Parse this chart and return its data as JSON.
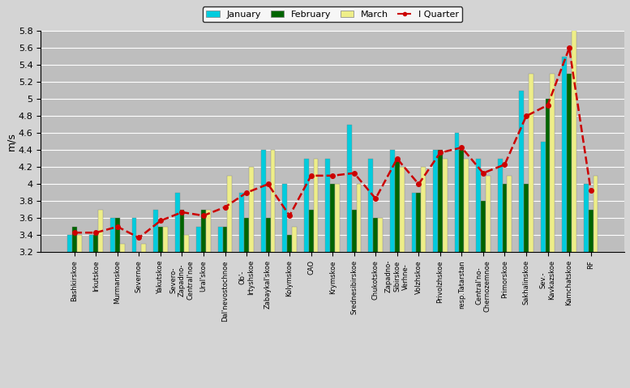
{
  "categories": [
    "Bashkirskoe",
    "Irkutskoe",
    "Murmanskoe",
    "Severnoe",
    "Yakutskoe",
    "Severo-\nZapadno-\nCentral'noe",
    "Ural'skoe",
    "Dal'nevostochnoe",
    "Ob'-\nIrtyshskoe",
    "Zabaykal'skoe",
    "Kolymskoe",
    "CAO",
    "Krymskoe",
    "Srednesibirskoe",
    "Chukotskoe",
    "Zapadno-\nSibirskoe\nVerhne-",
    "Volzhskoe",
    "Privolzhskoe",
    "resp.Tatarstan",
    "Central'no-\nChernozemnoe",
    "Primorskoe",
    "Sakhalinskoe",
    "Sev.-\nKavkazskoe",
    "Kamchatskoe",
    "RF"
  ],
  "january": [
    3.4,
    3.4,
    3.6,
    3.6,
    3.7,
    3.9,
    3.5,
    3.5,
    3.9,
    4.4,
    4.0,
    4.3,
    4.3,
    4.7,
    4.3,
    4.4,
    3.9,
    4.4,
    4.6,
    4.3,
    4.3,
    5.1,
    4.5,
    5.5,
    4.0
  ],
  "february": [
    3.5,
    3.4,
    3.6,
    3.2,
    3.5,
    3.7,
    3.7,
    3.5,
    3.6,
    3.6,
    3.4,
    3.7,
    4.0,
    3.7,
    3.6,
    4.3,
    3.9,
    4.4,
    4.4,
    3.8,
    4.0,
    4.0,
    5.0,
    5.3,
    3.7
  ],
  "march": [
    3.4,
    3.7,
    3.3,
    3.3,
    3.5,
    3.4,
    3.7,
    4.1,
    4.2,
    4.4,
    3.5,
    4.3,
    4.0,
    4.0,
    3.6,
    4.2,
    4.2,
    4.3,
    4.3,
    4.1,
    4.1,
    5.3,
    5.3,
    6.0,
    4.1
  ],
  "quarter": [
    3.43,
    3.43,
    3.5,
    3.37,
    3.57,
    3.67,
    3.63,
    3.73,
    3.9,
    4.0,
    3.63,
    4.1,
    4.1,
    4.13,
    3.83,
    4.3,
    4.0,
    4.37,
    4.43,
    4.13,
    4.23,
    4.8,
    4.93,
    5.6,
    3.93
  ],
  "jan_color": "#00CCDD",
  "feb_color": "#006400",
  "mar_color": "#EEEE88",
  "quarter_color": "#CC0000",
  "bg_color": "#BEBEBE",
  "ylabel": "m/s",
  "ylim": [
    3.2,
    5.8
  ],
  "ytick_labels": [
    "3.2",
    "3.4",
    "3.6",
    "3.8",
    "4",
    "4.2",
    "4.4",
    "4.6",
    "4.8",
    "5",
    "5.2",
    "5.4",
    "5.6",
    "5.8"
  ],
  "ytick_vals": [
    3.2,
    3.4,
    3.6,
    3.8,
    4.0,
    4.2,
    4.4,
    4.6,
    4.8,
    5.0,
    5.2,
    5.4,
    5.6,
    5.8
  ]
}
